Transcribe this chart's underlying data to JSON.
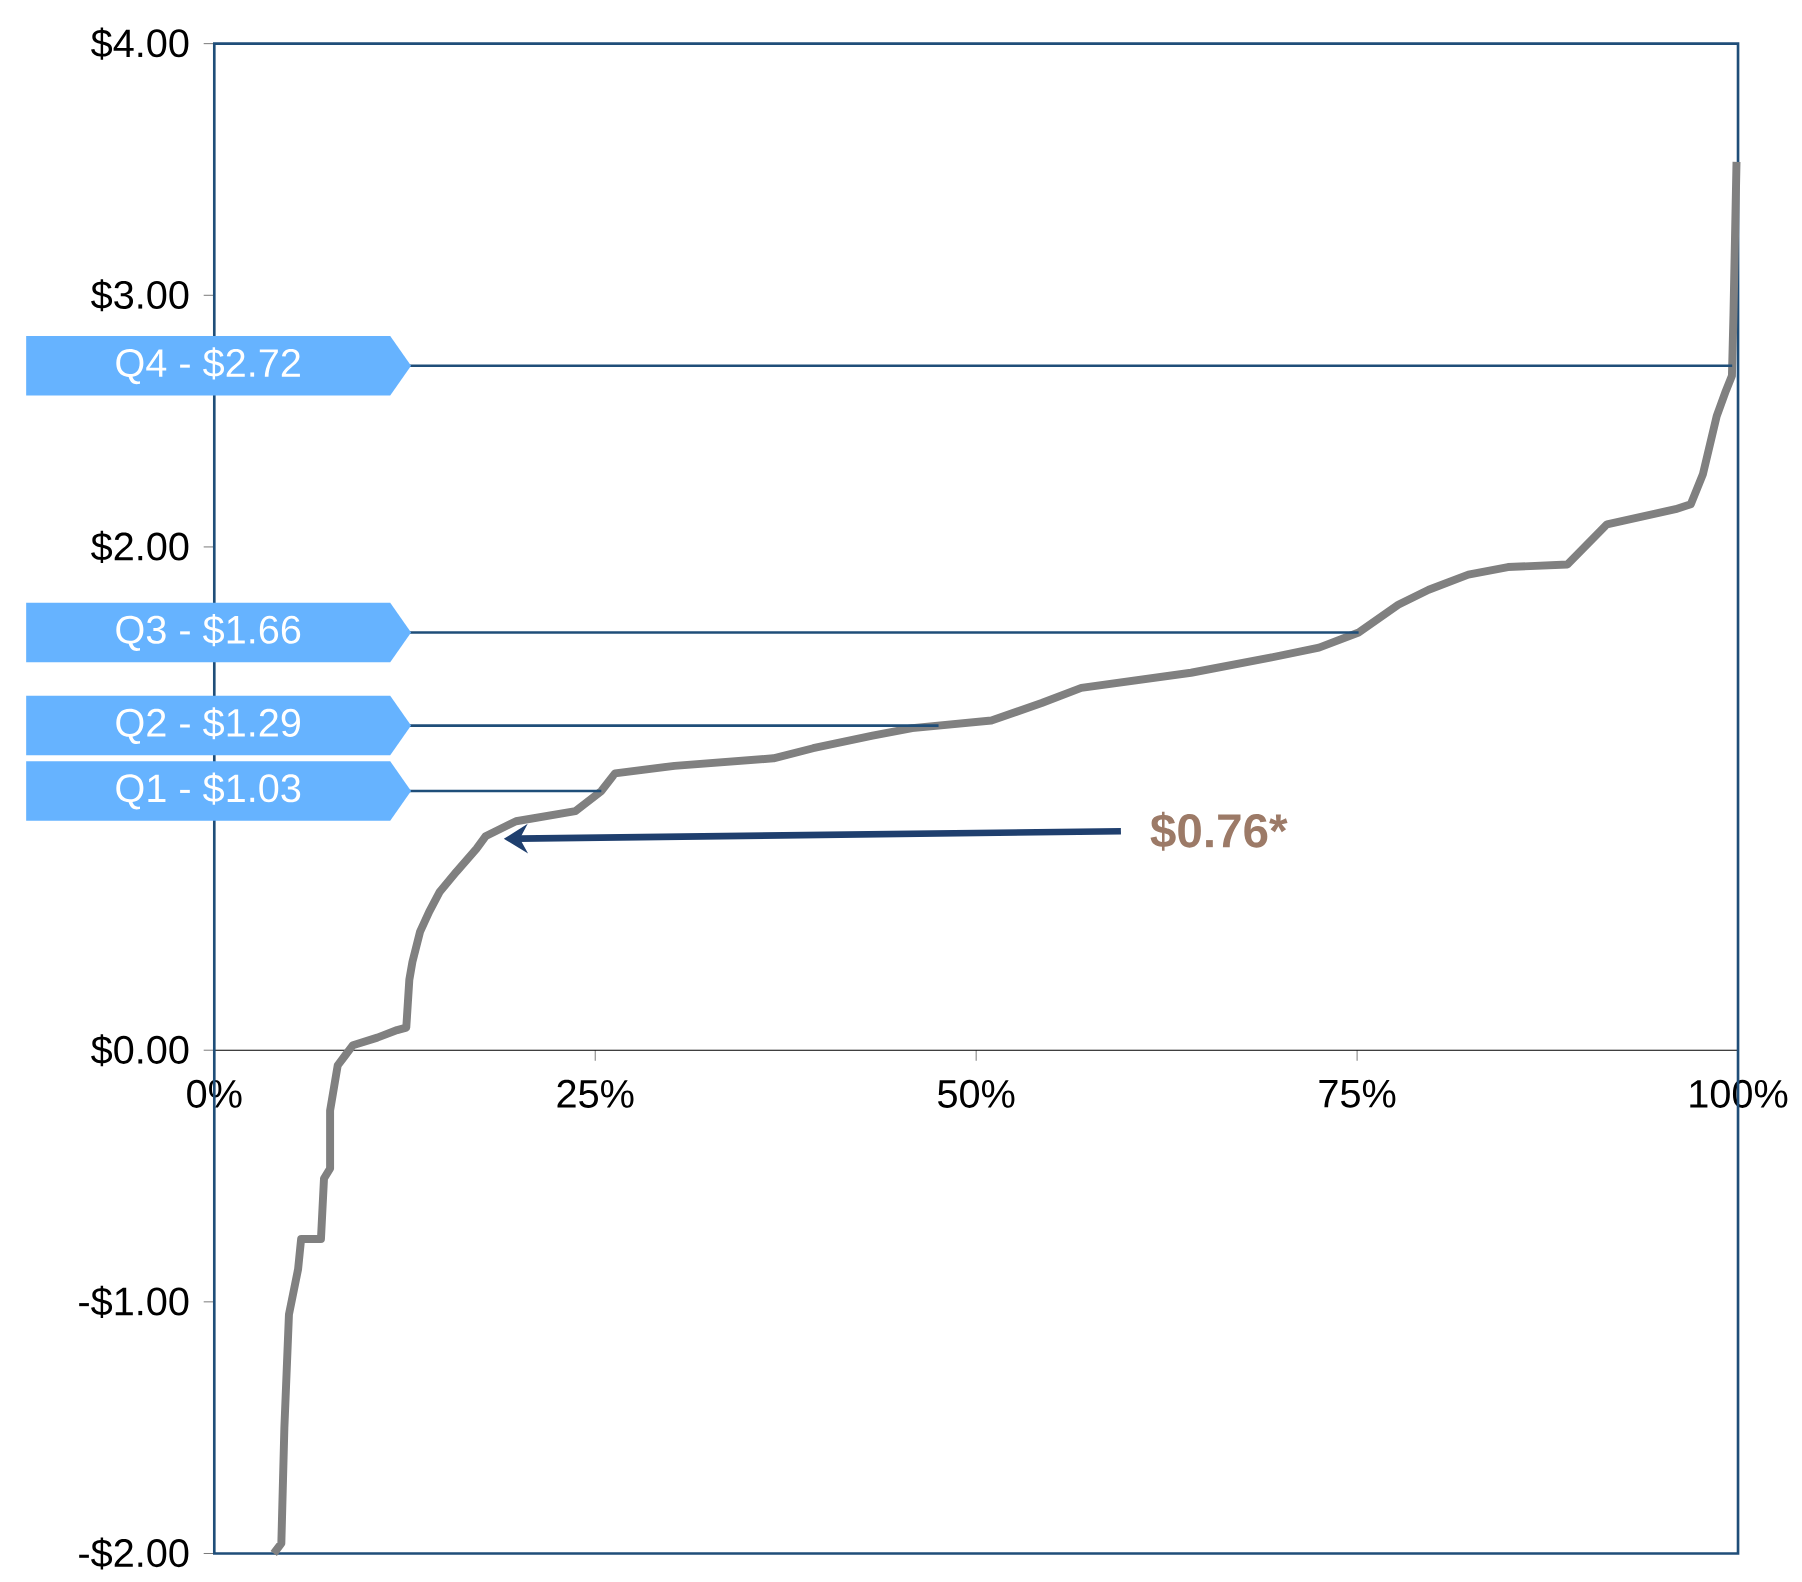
{
  "chart_data": {
    "type": "line",
    "x": [
      3.9,
      4.4,
      4.6,
      4.9,
      5.5,
      5.7,
      7.0,
      7.2,
      7.6,
      7.6,
      8.1,
      8.6,
      9.1,
      10.7,
      12.0,
      12.6,
      12.8,
      13.0,
      13.5,
      14.1,
      14.8,
      15.9,
      17.2,
      17.8,
      19.8,
      23.7,
      25.4,
      26.3,
      30.2,
      36.7,
      39.3,
      43.2,
      45.8,
      51.0,
      54.3,
      56.9,
      64.1,
      69.3,
      72.5,
      75.1,
      77.7,
      79.7,
      82.3,
      84.9,
      88.8,
      90.1,
      91.4,
      95.9,
      96.9,
      97.7,
      98.6,
      99.2,
      99.6,
      99.7,
      99.9
    ],
    "series": [
      {
        "color": "#808080",
        "values": [
          -2.0,
          -1.96,
          -1.5,
          -1.05,
          -0.87,
          -0.75,
          -0.75,
          -0.51,
          -0.47,
          -0.24,
          -0.06,
          -0.02,
          0.02,
          0.05,
          0.08,
          0.09,
          0.28,
          0.35,
          0.47,
          0.55,
          0.63,
          0.71,
          0.8,
          0.85,
          0.91,
          0.95,
          1.03,
          1.1,
          1.13,
          1.16,
          1.2,
          1.25,
          1.28,
          1.31,
          1.38,
          1.44,
          1.5,
          1.56,
          1.6,
          1.66,
          1.77,
          1.83,
          1.89,
          1.92,
          1.93,
          2.01,
          2.09,
          2.15,
          2.17,
          2.29,
          2.52,
          2.62,
          2.68,
          2.92,
          3.53
        ]
      }
    ],
    "xlim": [
      0,
      100
    ],
    "ylim": [
      -2,
      4
    ],
    "xticks": [
      {
        "value": 0,
        "label": "0%"
      },
      {
        "value": 25,
        "label": "25%"
      },
      {
        "value": 50,
        "label": "50%"
      },
      {
        "value": 75,
        "label": "75%"
      },
      {
        "value": 100,
        "label": "100%"
      }
    ],
    "yticks": [
      {
        "value": -2,
        "label": "-$2.00"
      },
      {
        "value": -1,
        "label": "-$1.00"
      },
      {
        "value": 0,
        "label": "$0.00"
      },
      {
        "value": 2,
        "label": "$2.00"
      },
      {
        "value": 3,
        "label": "$3.00"
      },
      {
        "value": 4,
        "label": "$4.00"
      }
    ],
    "ref_lines": [
      {
        "axis": "y",
        "value": 2.72,
        "label": "Q4 - $2.72",
        "color": "#1f4e79"
      },
      {
        "axis": "y",
        "value": 1.66,
        "label": "Q3 - $1.66",
        "color": "#1f4e79"
      },
      {
        "axis": "y",
        "value": 1.29,
        "label": "Q2 - $1.29",
        "color": "#1f4e79"
      },
      {
        "axis": "y",
        "value": 1.03,
        "label": "Q1 - $1.03",
        "color": "#1f4e79"
      }
    ],
    "annotations": [
      {
        "text": "$0.76*",
        "x": 19,
        "y": 0.84
      }
    ],
    "marker": "none",
    "line_style": "solid"
  }
}
